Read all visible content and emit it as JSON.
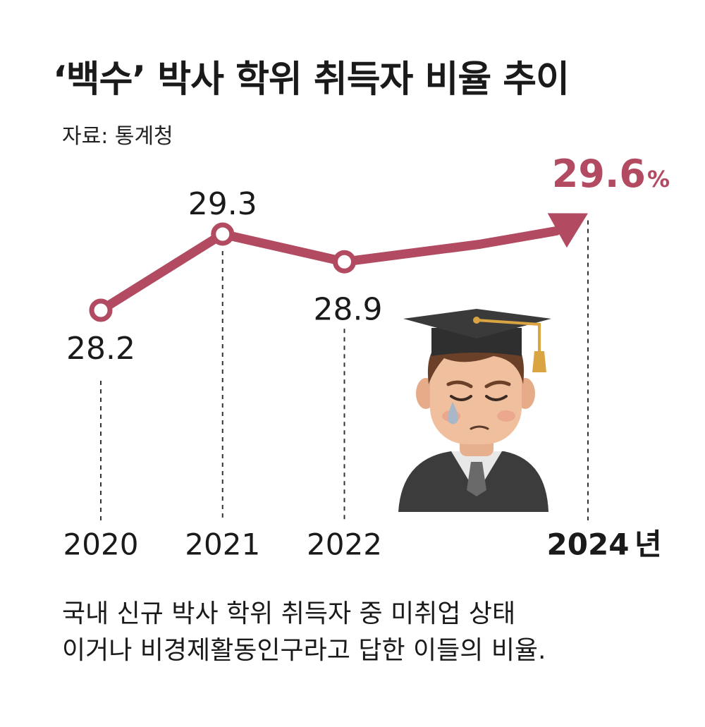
{
  "title": "‘백수’ 박사 학위 취득자 비율 추이",
  "source": "자료: 통계청",
  "caption": [
    "국내 신규 박사 학위 취득자 중 미취업 상태",
    "이거나 비경제활동인구라고 답한 이들의 비율."
  ],
  "colors": {
    "line": "#B24B62",
    "highlight": "#B24B62",
    "text": "#1a1a1a"
  },
  "illustration": "crying-graduate-icon",
  "chart_data": {
    "type": "line",
    "x": [
      "2020",
      "2021",
      "2022",
      "2024"
    ],
    "x_unit": "년",
    "values": [
      28.2,
      29.3,
      28.9,
      29.6
    ],
    "labels": [
      "28.2",
      "29.3",
      "28.9",
      "29.6"
    ],
    "highlight_unit": "%",
    "ylim": [
      27.5,
      30.0
    ],
    "grid": false
  }
}
